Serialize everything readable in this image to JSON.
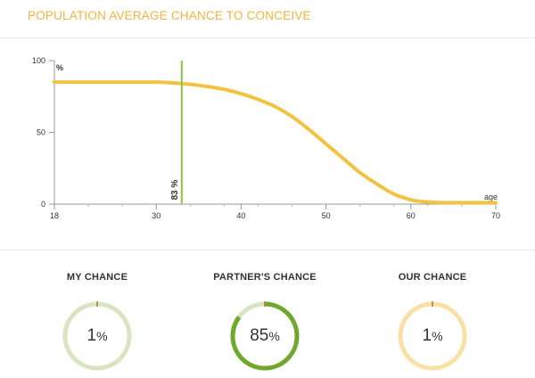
{
  "header": {
    "title": "POPULATION AVERAGE CHANCE TO CONCEIVE"
  },
  "chart_data": {
    "type": "line",
    "xlabel": "age",
    "ylabel": "%",
    "xlim": [
      18,
      70
    ],
    "ylim": [
      0,
      100
    ],
    "x_ticks": [
      18,
      30,
      40,
      50,
      60,
      70
    ],
    "y_ticks": [
      0,
      50,
      100
    ],
    "series": [
      {
        "x": [
          18,
          22,
          26,
          30,
          32,
          34,
          36,
          38,
          40,
          42,
          44,
          46,
          48,
          50,
          52,
          54,
          56,
          58,
          60,
          61,
          62,
          64,
          66,
          68,
          70
        ],
        "y": [
          85,
          85,
          85,
          85,
          84.5,
          83.5,
          82,
          80,
          77,
          73,
          68,
          61,
          52,
          42,
          32,
          22,
          14,
          7,
          3,
          2,
          1.5,
          1,
          1,
          1,
          1
        ],
        "color": "#f2c340"
      }
    ],
    "marker": {
      "x": 33,
      "label": "83 %",
      "color": "#8cc63f"
    }
  },
  "chances": [
    {
      "label": "MY CHANCE",
      "value": 1,
      "value_text": "1",
      "unit": "%",
      "ring_color": "#d9e4c0",
      "tick_color": "#b0763a"
    },
    {
      "label": "PARTNER'S CHANCE",
      "value": 85,
      "value_text": "85",
      "unit": "%",
      "ring_color": "#d9e4c0",
      "fill_color": "#6fa82a",
      "tick_color": "#b0763a"
    },
    {
      "label": "OUR CHANCE",
      "value": 1,
      "value_text": "1",
      "unit": "%",
      "ring_color": "#fbe0a6",
      "tick_color": "#b0763a"
    }
  ]
}
